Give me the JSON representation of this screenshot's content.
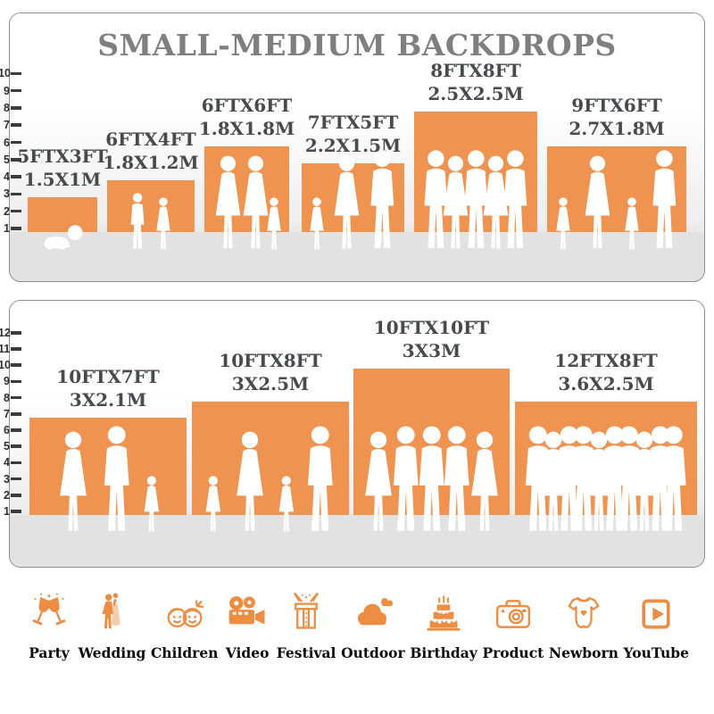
{
  "title": "SMALL-MEDIUM BACKDROPS",
  "colors": {
    "bar": "#EE9350",
    "icon": "#EC8D44",
    "title": "#7F7F7F",
    "bar_label": "#474B4D",
    "tick": "#3C3C3C",
    "floor": "#E2E2E2",
    "panel_border": "#8D8D8D",
    "figure": "#FFFFFF",
    "category_label": "#0D0D0D"
  },
  "chart_data": [
    {
      "type": "bar",
      "title": "SMALL-MEDIUM BACKDROPS",
      "axis": {
        "min": 1,
        "max": 12,
        "unit": "ft"
      },
      "axis_shown_max": 10,
      "grid": false,
      "legend": "none",
      "categories": [
        "5FTX3FT",
        "6FTX4FT",
        "6FTX6FT",
        "7FTX5FT",
        "8FTX8FT",
        "9FTX6FT"
      ],
      "values": [
        3,
        4,
        6,
        5,
        8,
        6
      ],
      "bars": [
        {
          "size_ft": "5FTX3FT",
          "size_m": "1.5X1M",
          "height_ft": 3,
          "figures": [
            "baby"
          ]
        },
        {
          "size_ft": "6FTX4FT",
          "size_m": "1.8X1.2M",
          "height_ft": 4,
          "figures": [
            "boy",
            "girl"
          ]
        },
        {
          "size_ft": "6FTX6FT",
          "size_m": "1.8X1.8M",
          "height_ft": 6,
          "figures": [
            "woman",
            "woman",
            "girl"
          ]
        },
        {
          "size_ft": "7FTX5FT",
          "size_m": "2.2X1.5M",
          "height_ft": 5,
          "figures": [
            "girl",
            "woman",
            "man"
          ]
        },
        {
          "size_ft": "8FTX8FT",
          "size_m": "2.5X2.5M",
          "height_ft": 8,
          "figures": [
            "man",
            "woman",
            "man",
            "woman",
            "man"
          ]
        },
        {
          "size_ft": "9FTX6FT",
          "size_m": "2.7X1.8M",
          "height_ft": 6,
          "figures": [
            "girl",
            "woman",
            "girl",
            "man"
          ]
        }
      ]
    },
    {
      "type": "bar",
      "title": "",
      "axis": {
        "min": 1,
        "max": 12,
        "unit": "ft"
      },
      "axis_shown_max": 12,
      "grid": false,
      "legend": "none",
      "categories": [
        "10FTX7FT",
        "10FTX8FT",
        "10FTX10FT",
        "12FTX8FT"
      ],
      "values": [
        7,
        8,
        10,
        8
      ],
      "bars": [
        {
          "size_ft": "10FTX7FT",
          "size_m": "3X2.1M",
          "height_ft": 7,
          "figures": [
            "woman",
            "man",
            "girl"
          ]
        },
        {
          "size_ft": "10FTX8FT",
          "size_m": "3X2.5M",
          "height_ft": 8,
          "figures": [
            "girl",
            "woman",
            "girl",
            "man"
          ]
        },
        {
          "size_ft": "10FTX10FT",
          "size_m": "3X3M",
          "height_ft": 10,
          "figures": [
            "woman",
            "man",
            "man",
            "man",
            "woman"
          ]
        },
        {
          "size_ft": "12FTX8FT",
          "size_m": "3.6X2.5M",
          "height_ft": 8,
          "figures": [
            "man",
            "woman",
            "man",
            "man",
            "woman",
            "man",
            "man",
            "woman",
            "man",
            "man"
          ]
        }
      ]
    }
  ],
  "categories": [
    {
      "label": "Party",
      "icon": "party"
    },
    {
      "label": "Wedding",
      "icon": "wedding"
    },
    {
      "label": "Children",
      "icon": "children"
    },
    {
      "label": "Video",
      "icon": "video"
    },
    {
      "label": "Festival",
      "icon": "festival"
    },
    {
      "label": "Outdoor",
      "icon": "outdoor"
    },
    {
      "label": "Birthday",
      "icon": "birthday"
    },
    {
      "label": "Product",
      "icon": "product"
    },
    {
      "label": "Newborn",
      "icon": "newborn"
    },
    {
      "label": "YouTube",
      "icon": "youtube"
    }
  ]
}
